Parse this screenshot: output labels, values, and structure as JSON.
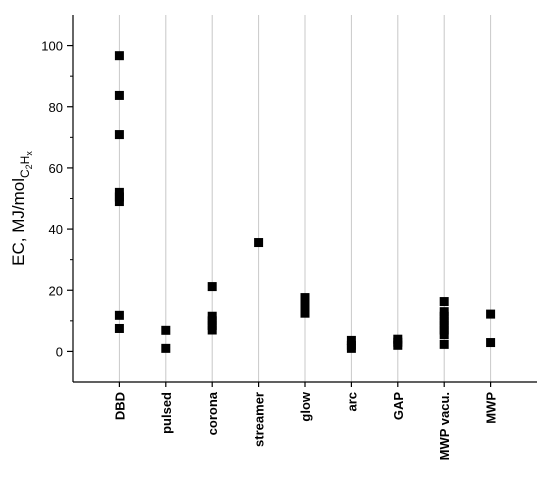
{
  "chart_data": {
    "type": "scatter",
    "ylabel": [
      {
        "text": "EC, MJ/mol",
        "level": 0
      },
      {
        "text": "C",
        "level": 1
      },
      {
        "text": "2",
        "level": 2
      },
      {
        "text": "H",
        "level": 1
      },
      {
        "text": "x",
        "level": 2
      }
    ],
    "categories": [
      "DBD",
      "pulsed",
      "corona",
      "streamer",
      "glow",
      "arc",
      "GAP",
      "MWP vacu.",
      "MWP"
    ],
    "values": [
      [
        96.7,
        83.7,
        70.9,
        52,
        50.5,
        49,
        11.8,
        7.5
      ],
      [
        6.9,
        1
      ],
      [
        21.2,
        11.5,
        10,
        8.5,
        7
      ],
      [
        35.6
      ],
      [
        17.6,
        16,
        14.5,
        13,
        12.5
      ],
      [
        3.6,
        2,
        1
      ],
      [
        4,
        3,
        2
      ],
      [
        16.3,
        13,
        11.5,
        10,
        8.5,
        7,
        5.5,
        2.3
      ],
      [
        12.2,
        2.9
      ]
    ],
    "color": "#000000",
    "ylim": [
      -10,
      110
    ],
    "yticks": [
      0,
      20,
      40,
      60,
      80,
      100
    ],
    "yticks_minor": [
      10,
      30,
      50,
      70,
      90
    ],
    "grid": true
  }
}
